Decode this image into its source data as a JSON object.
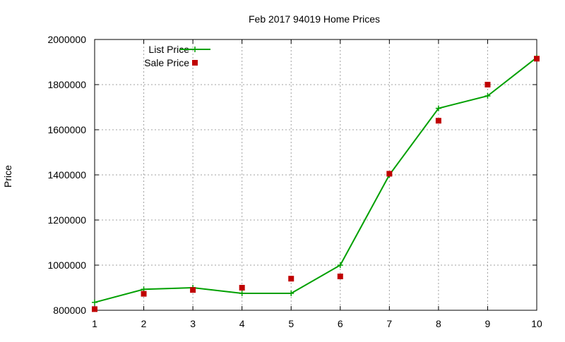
{
  "chart_data": {
    "type": "line",
    "title": "Feb 2017 94019 Home Prices",
    "xlabel": "",
    "ylabel": "Price",
    "xlim": [
      1,
      10
    ],
    "ylim": [
      800000,
      2000000
    ],
    "x_ticks": [
      1,
      2,
      3,
      4,
      5,
      6,
      7,
      8,
      9,
      10
    ],
    "y_ticks": [
      800000,
      1000000,
      1200000,
      1400000,
      1600000,
      1800000,
      2000000
    ],
    "grid": true,
    "legend_position": "top-left",
    "series": [
      {
        "name": "List Price",
        "kind": "line-points",
        "marker": "plus",
        "color": "#00a000",
        "x": [
          1,
          2,
          3,
          4,
          5,
          6,
          7,
          8,
          9,
          10
        ],
        "y": [
          835000,
          893000,
          900000,
          875000,
          875000,
          1000000,
          1400000,
          1695000,
          1750000,
          1920000
        ]
      },
      {
        "name": "Sale Price",
        "kind": "points",
        "marker": "square",
        "color": "#c00000",
        "x": [
          1,
          2,
          3,
          4,
          5,
          6,
          7,
          8,
          9,
          10
        ],
        "y": [
          805000,
          873000,
          890000,
          900000,
          940000,
          950000,
          1405000,
          1640000,
          1800000,
          1915000
        ]
      }
    ]
  }
}
